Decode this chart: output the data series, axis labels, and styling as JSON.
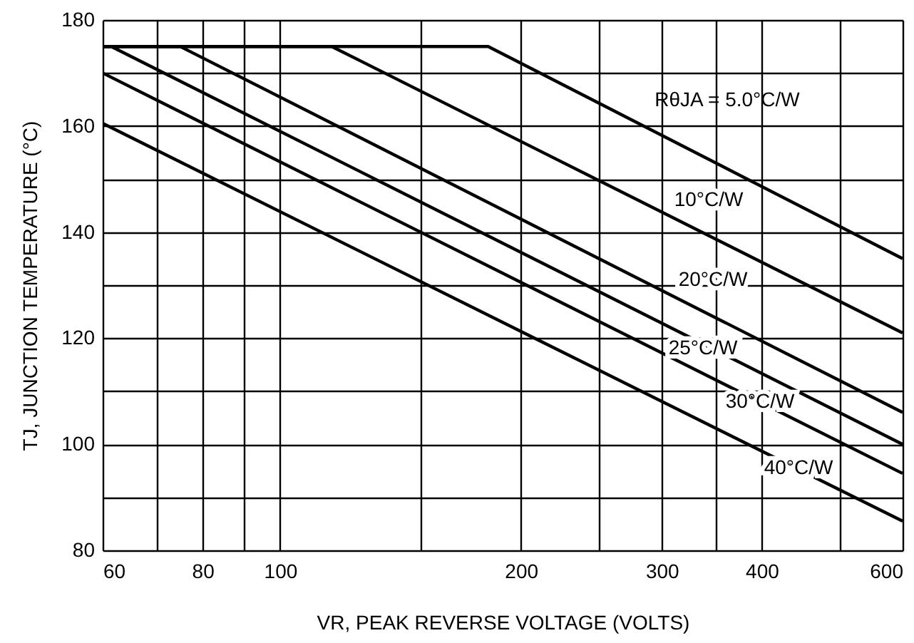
{
  "chart_data": {
    "type": "line",
    "xlabel": "VR, PEAK REVERSE VOLTAGE (VOLTS)",
    "ylabel": "TJ, JUNCTION TEMPERATURE (°C)",
    "log": "x",
    "xlim": [
      60,
      600
    ],
    "xticks": [
      60,
      {
        "value": 70,
        "label": null
      },
      80,
      {
        "value": 90,
        "label": null
      },
      100,
      {
        "value": 150,
        "label": null
      },
      200,
      {
        "value": 250,
        "label": null
      },
      300,
      {
        "value": 350,
        "label": null
      },
      400,
      {
        "value": 500,
        "label": null
      },
      600
    ],
    "ylim": [
      80,
      180
    ],
    "yticks": [
      80,
      {
        "value": 90,
        "label": null
      },
      100,
      {
        "value": 110,
        "label": null
      },
      120,
      {
        "value": 130,
        "label": null
      },
      140,
      {
        "value": 150,
        "label": null
      },
      160,
      {
        "value": 170,
        "label": null
      },
      180
    ],
    "grid": true,
    "series": [
      {
        "name": "RθJA = 5.0°C/W",
        "color": "#000000",
        "x": [
          60,
          182,
          600
        ],
        "values": [
          175,
          175,
          135
        ]
      },
      {
        "name": "10°C/W",
        "color": "#000000",
        "x": [
          60,
          116,
          600
        ],
        "values": [
          175,
          175,
          121
        ]
      },
      {
        "name": "20°C/W",
        "color": "#000000",
        "x": [
          60,
          75,
          600
        ],
        "values": [
          175,
          175,
          106
        ]
      },
      {
        "name": "25°C/W",
        "color": "#000000",
        "x": [
          60,
          61.5,
          600
        ],
        "values": [
          175,
          175,
          100
        ]
      },
      {
        "name": "30°C/W",
        "color": "#000000",
        "x": [
          60,
          600
        ],
        "values": [
          170,
          94.5
        ]
      },
      {
        "name": "40°C/W",
        "color": "#000000",
        "x": [
          60,
          600
        ],
        "values": [
          160.5,
          85.5
        ]
      }
    ]
  }
}
